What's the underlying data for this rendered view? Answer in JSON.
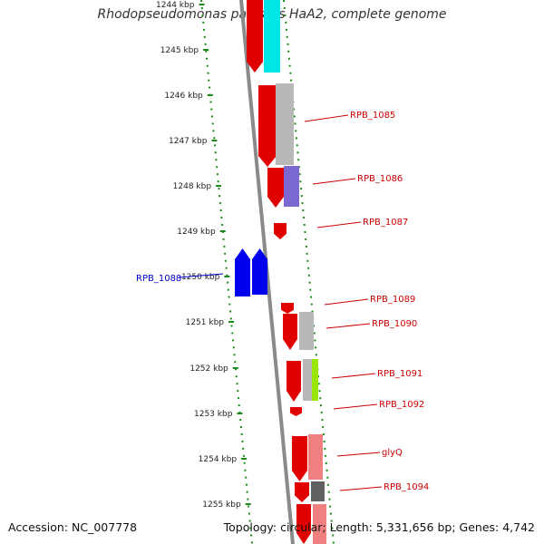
{
  "title": "Rhodopseudomonas palustris HaA2, complete genome",
  "footer": {
    "accession": "Accession: NC_007778",
    "summary": "Topology: circular; Length: 5,331,656 bp; Genes: 4,742"
  },
  "ticks": [
    "1244 kbp",
    "1245 kbp",
    "1246 kbp",
    "1247 kbp",
    "1248 kbp",
    "1249 kbp",
    "1250 kbp",
    "1251 kbp",
    "1252 kbp",
    "1253 kbp",
    "1254 kbp",
    "1255 kbp"
  ],
  "gene_labels": [
    {
      "text": "RPB_1085",
      "color": "#cc0000"
    },
    {
      "text": "RPB_1086",
      "color": "#cc0000"
    },
    {
      "text": "RPB_1087",
      "color": "#cc0000"
    },
    {
      "text": "RPB_1088",
      "color": "#0000cc"
    },
    {
      "text": "RPB_1089",
      "color": "#cc0000"
    },
    {
      "text": "RPB_1090",
      "color": "#cc0000"
    },
    {
      "text": "RPB_1091",
      "color": "#cc0000"
    },
    {
      "text": "RPB_1092",
      "color": "#cc0000"
    },
    {
      "text": "glyQ",
      "color": "#cc0000"
    },
    {
      "text": "RPB_1094",
      "color": "#cc0000"
    }
  ],
  "colors": {
    "backbone": "#8a8a8a",
    "tick_marks": "#1a8a1a",
    "gene_forward": "#e00000",
    "gene_reverse": "#0000ee",
    "cyan": "#00e5e5",
    "gray": "#b8b8b8",
    "purple": "#7b68d0",
    "lime": "#99e600",
    "pink": "#f08080",
    "dark": "#606060"
  }
}
